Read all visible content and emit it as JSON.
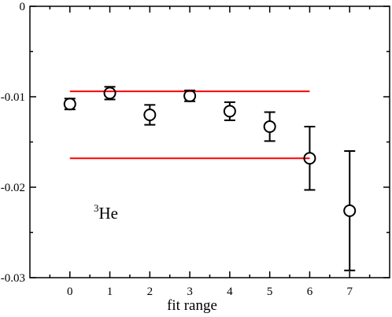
{
  "chart_data": {
    "type": "scatter",
    "xlabel": "fit range",
    "ylabel": "",
    "xlim": [
      -1,
      8
    ],
    "ylim": [
      -0.03,
      0
    ],
    "x_ticks": [
      0,
      1,
      2,
      3,
      4,
      5,
      6,
      7
    ],
    "y_ticks": [
      0,
      -0.01,
      -0.02,
      -0.03
    ],
    "x_tick_labels": [
      "0",
      "1",
      "2",
      "3",
      "4",
      "5",
      "6",
      "7"
    ],
    "y_tick_labels": [
      "0",
      "-0.01",
      "-0.02",
      "-0.03"
    ],
    "grid": false,
    "annotation": {
      "sup": "3",
      "text": "He"
    },
    "points": [
      {
        "x": 0,
        "y": -0.0108,
        "err": 0.0006
      },
      {
        "x": 1,
        "y": -0.0096,
        "err": 0.0007
      },
      {
        "x": 2,
        "y": -0.012,
        "err": 0.0011
      },
      {
        "x": 3,
        "y": -0.0099,
        "err": 0.0006
      },
      {
        "x": 4,
        "y": -0.0116,
        "err": 0.001
      },
      {
        "x": 5,
        "y": -0.0133,
        "err": 0.0016
      },
      {
        "x": 6,
        "y": -0.0168,
        "err": 0.0035
      },
      {
        "x": 7,
        "y": -0.0226,
        "err": 0.0066
      }
    ],
    "reference_lines": [
      {
        "y": -0.0094,
        "x_from": 0,
        "x_to": 6,
        "color": "#ff0000"
      },
      {
        "y": -0.0168,
        "x_from": 0,
        "x_to": 6,
        "color": "#ff0000"
      }
    ],
    "marker_color": "#000000"
  }
}
